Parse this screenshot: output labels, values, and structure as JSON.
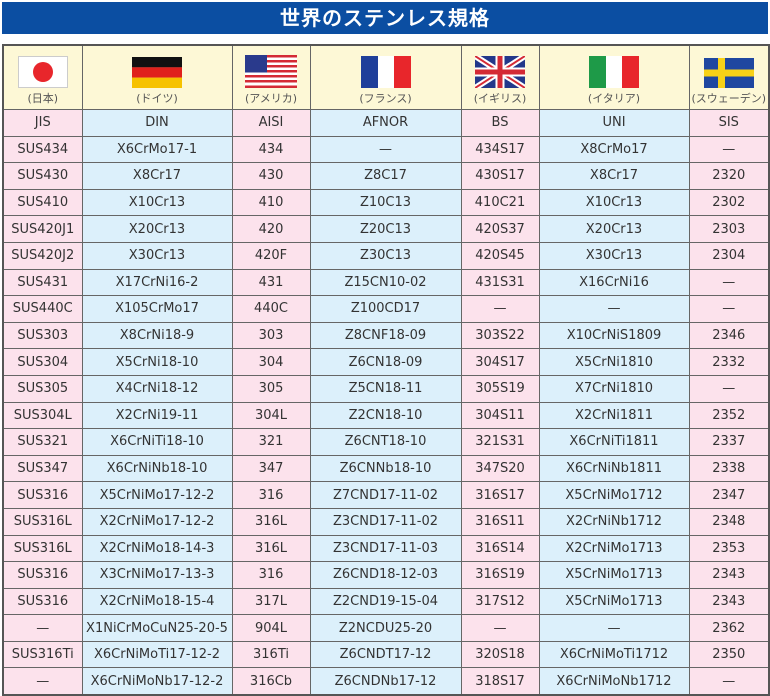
{
  "title": "世界のステンレス規格",
  "countries": [
    {
      "label": "(日本)",
      "flag": "japan-flag-icon"
    },
    {
      "label": "(ドイツ)",
      "flag": "germany-flag-icon"
    },
    {
      "label": "(アメリカ)",
      "flag": "usa-flag-icon"
    },
    {
      "label": "(フランス)",
      "flag": "france-flag-icon"
    },
    {
      "label": "(イギリス)",
      "flag": "uk-flag-icon"
    },
    {
      "label": "(イタリア)",
      "flag": "italy-flag-icon"
    },
    {
      "label": "(スウェーデン)",
      "flag": "sweden-flag-icon"
    }
  ],
  "columns": [
    "JIS",
    "DIN",
    "AISI",
    "AFNOR",
    "BS",
    "UNI",
    "SIS"
  ],
  "rows": [
    [
      "SUS434",
      "X6CrMo17-1",
      "434",
      "—",
      "434S17",
      "X8CrMo17",
      "—"
    ],
    [
      "SUS430",
      "X8Cr17",
      "430",
      "Z8C17",
      "430S17",
      "X8Cr17",
      "2320"
    ],
    [
      "SUS410",
      "X10Cr13",
      "410",
      "Z10C13",
      "410C21",
      "X10Cr13",
      "2302"
    ],
    [
      "SUS420J1",
      "X20Cr13",
      "420",
      "Z20C13",
      "420S37",
      "X20Cr13",
      "2303"
    ],
    [
      "SUS420J2",
      "X30Cr13",
      "420F",
      "Z30C13",
      "420S45",
      "X30Cr13",
      "2304"
    ],
    [
      "SUS431",
      "X17CrNi16-2",
      "431",
      "Z15CN10-02",
      "431S31",
      "X16CrNi16",
      "—"
    ],
    [
      "SUS440C",
      "X105CrMo17",
      "440C",
      "Z100CD17",
      "—",
      "—",
      "—"
    ],
    [
      "SUS303",
      "X8CrNi18-9",
      "303",
      "Z8CNF18-09",
      "303S22",
      "X10CrNiS1809",
      "2346"
    ],
    [
      "SUS304",
      "X5CrNi18-10",
      "304",
      "Z6CN18-09",
      "304S17",
      "X5CrNi1810",
      "2332"
    ],
    [
      "SUS305",
      "X4CrNi18-12",
      "305",
      "Z5CN18-11",
      "305S19",
      "X7CrNi1810",
      "—"
    ],
    [
      "SUS304L",
      "X2CrNi19-11",
      "304L",
      "Z2CN18-10",
      "304S11",
      "X2CrNi1811",
      "2352"
    ],
    [
      "SUS321",
      "X6CrNiTi18-10",
      "321",
      "Z6CNT18-10",
      "321S31",
      "X6CrNiTi1811",
      "2337"
    ],
    [
      "SUS347",
      "X6CrNiNb18-10",
      "347",
      "Z6CNNb18-10",
      "347S20",
      "X6CrNiNb1811",
      "2338"
    ],
    [
      "SUS316",
      "X5CrNiMo17-12-2",
      "316",
      "Z7CND17-11-02",
      "316S17",
      "X5CrNiMo1712",
      "2347"
    ],
    [
      "SUS316L",
      "X2CrNiMo17-12-2",
      "316L",
      "Z3CND17-11-02",
      "316S11",
      "X2CrNiNb1712",
      "2348"
    ],
    [
      "SUS316L",
      "X2CrNiMo18-14-3",
      "316L",
      "Z3CND17-11-03",
      "316S14",
      "X2CrNiMo1713",
      "2353"
    ],
    [
      "SUS316",
      "X3CrNiMo17-13-3",
      "316",
      "Z6CND18-12-03",
      "316S19",
      "X5CrNiMo1713",
      "2343"
    ],
    [
      "SUS316",
      "X2CrNiMo18-15-4",
      "317L",
      "Z2CND19-15-04",
      "317S12",
      "X5CrNiMo1713",
      "2343"
    ],
    [
      "—",
      "X1NiCrMoCuN25-20-5",
      "904L",
      "Z2NCDU25-20",
      "—",
      "—",
      "2362"
    ],
    [
      "SUS316Ti",
      "X6CrNiMoTi17-12-2",
      "316Ti",
      "Z6CNDT17-12",
      "320S18",
      "X6CrNiMoTi1712",
      "2350"
    ],
    [
      "—",
      "X6CrNiMoNb17-12-2",
      "316Cb",
      "Z6CNDNb17-12",
      "318S17",
      "X6CrNiMoNb1712",
      "—"
    ]
  ],
  "colors": {
    "title_bg": "#0b4ea2",
    "pink": "#fce2ec",
    "blue": "#dcf0fb",
    "header_bg": "#fdf8d6"
  }
}
